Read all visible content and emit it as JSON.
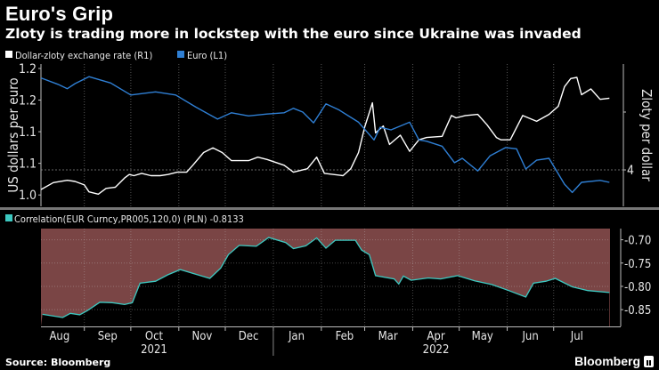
{
  "title": "Euro's Grip",
  "subtitle": "Zloty is trading more in lockstep with the euro since Ukraine was invaded",
  "source": "Source: Bloomberg",
  "brand": "Bloomberg",
  "colors": {
    "euro": "#2f7fd4",
    "zloty": "#ffffff",
    "correlation": "#3cc8c0",
    "correlation_fill": "#7a4545",
    "background": "#000000"
  },
  "chart_data": [
    {
      "type": "line",
      "legend": [
        {
          "label": "Dollar-zloty exchange rate (R1)",
          "color": "#ffffff"
        },
        {
          "label": "Euro  (L1)",
          "color": "#2f7fd4"
        }
      ],
      "legend_placement": "top-left",
      "xlim": [
        "2021-08-04",
        "2022-08-15"
      ],
      "grid": true,
      "left_axis": {
        "label": "US dollars per euro",
        "ylim": [
          0.982,
          1.207
        ],
        "ticks": [
          1.2,
          1.15,
          1.1,
          1.05,
          1.0
        ],
        "tick_labels": [
          "1.2",
          "1.2",
          "1.1",
          "1.1",
          "1.0"
        ]
      },
      "right_axis": {
        "label": "Zloty per dollar",
        "ylim": [
          3.685,
          4.915
        ],
        "ticks": [
          4.0,
          4.5
        ],
        "tick_labels": [
          "4",
          ""
        ]
      },
      "series": [
        {
          "name": "Dollar-zloty exchange rate (R1)",
          "axis": "right",
          "color": "#ffffff",
          "points": [
            [
              "2021-08-04",
              3.83
            ],
            [
              "2021-08-12",
              3.89
            ],
            [
              "2021-08-21",
              3.91
            ],
            [
              "2021-08-26",
              3.9
            ],
            [
              "2021-09-01",
              3.87
            ],
            [
              "2021-09-04",
              3.81
            ],
            [
              "2021-09-10",
              3.79
            ],
            [
              "2021-09-15",
              3.84
            ],
            [
              "2021-09-21",
              3.85
            ],
            [
              "2021-09-27",
              3.93
            ],
            [
              "2021-09-30",
              3.96
            ],
            [
              "2021-10-03",
              3.95
            ],
            [
              "2021-10-08",
              3.97
            ],
            [
              "2021-10-14",
              3.95
            ],
            [
              "2021-10-20",
              3.95
            ],
            [
              "2021-10-25",
              3.96
            ],
            [
              "2021-10-31",
              3.98
            ],
            [
              "2021-11-06",
              3.98
            ],
            [
              "2021-11-10",
              4.04
            ],
            [
              "2021-11-17",
              4.15
            ],
            [
              "2021-11-23",
              4.19
            ],
            [
              "2021-11-29",
              4.15
            ],
            [
              "2021-12-05",
              4.08
            ],
            [
              "2021-12-16",
              4.08
            ],
            [
              "2021-12-22",
              4.11
            ],
            [
              "2021-12-28",
              4.09
            ],
            [
              "2022-01-08",
              4.04
            ],
            [
              "2022-01-14",
              3.98
            ],
            [
              "2022-01-23",
              4.01
            ],
            [
              "2022-01-29",
              4.11
            ],
            [
              "2022-02-03",
              3.97
            ],
            [
              "2022-02-15",
              3.95
            ],
            [
              "2022-02-20",
              4.01
            ],
            [
              "2022-02-25",
              4.15
            ],
            [
              "2022-03-01",
              4.37
            ],
            [
              "2022-03-06",
              4.58
            ],
            [
              "2022-03-08",
              4.32
            ],
            [
              "2022-03-13",
              4.38
            ],
            [
              "2022-03-17",
              4.22
            ],
            [
              "2022-03-24",
              4.3
            ],
            [
              "2022-03-30",
              4.16
            ],
            [
              "2022-04-05",
              4.26
            ],
            [
              "2022-04-10",
              4.28
            ],
            [
              "2022-04-20",
              4.29
            ],
            [
              "2022-04-26",
              4.47
            ],
            [
              "2022-04-29",
              4.45
            ],
            [
              "2022-05-05",
              4.47
            ],
            [
              "2022-05-13",
              4.48
            ],
            [
              "2022-05-19",
              4.39
            ],
            [
              "2022-05-25",
              4.28
            ],
            [
              "2022-05-28",
              4.26
            ],
            [
              "2022-06-03",
              4.26
            ],
            [
              "2022-06-11",
              4.47
            ],
            [
              "2022-06-20",
              4.42
            ],
            [
              "2022-06-28",
              4.48
            ],
            [
              "2022-07-04",
              4.55
            ],
            [
              "2022-07-08",
              4.72
            ],
            [
              "2022-07-12",
              4.79
            ],
            [
              "2022-07-16",
              4.8
            ],
            [
              "2022-07-19",
              4.65
            ],
            [
              "2022-07-25",
              4.7
            ],
            [
              "2022-07-31",
              4.61
            ],
            [
              "2022-08-06",
              4.62
            ]
          ]
        },
        {
          "name": "Euro  (L1)",
          "axis": "left",
          "color": "#2f7fd4",
          "points": [
            [
              "2021-08-04",
              1.185
            ],
            [
              "2021-08-15",
              1.175
            ],
            [
              "2021-08-21",
              1.168
            ],
            [
              "2021-08-26",
              1.176
            ],
            [
              "2021-09-04",
              1.187
            ],
            [
              "2021-09-18",
              1.177
            ],
            [
              "2021-10-01",
              1.158
            ],
            [
              "2021-10-17",
              1.163
            ],
            [
              "2021-10-30",
              1.158
            ],
            [
              "2021-11-12",
              1.139
            ],
            [
              "2021-11-26",
              1.12
            ],
            [
              "2021-12-05",
              1.13
            ],
            [
              "2021-12-16",
              1.125
            ],
            [
              "2021-12-28",
              1.128
            ],
            [
              "2022-01-08",
              1.13
            ],
            [
              "2022-01-14",
              1.137
            ],
            [
              "2022-01-20",
              1.131
            ],
            [
              "2022-01-27",
              1.114
            ],
            [
              "2022-02-04",
              1.144
            ],
            [
              "2022-02-12",
              1.135
            ],
            [
              "2022-02-25",
              1.115
            ],
            [
              "2022-03-07",
              1.087
            ],
            [
              "2022-03-11",
              1.107
            ],
            [
              "2022-03-18",
              1.103
            ],
            [
              "2022-03-30",
              1.115
            ],
            [
              "2022-04-05",
              1.087
            ],
            [
              "2022-04-10",
              1.085
            ],
            [
              "2022-04-20",
              1.077
            ],
            [
              "2022-04-28",
              1.051
            ],
            [
              "2022-05-03",
              1.058
            ],
            [
              "2022-05-13",
              1.038
            ],
            [
              "2022-05-21",
              1.062
            ],
            [
              "2022-05-31",
              1.075
            ],
            [
              "2022-06-07",
              1.073
            ],
            [
              "2022-06-13",
              1.041
            ],
            [
              "2022-06-20",
              1.055
            ],
            [
              "2022-06-28",
              1.058
            ],
            [
              "2022-07-08",
              1.017
            ],
            [
              "2022-07-13",
              1.004
            ],
            [
              "2022-07-19",
              1.02
            ],
            [
              "2022-07-31",
              1.023
            ],
            [
              "2022-08-06",
              1.02
            ]
          ]
        }
      ]
    },
    {
      "type": "area",
      "legend": [
        {
          "label": "Correlation(EUR Curncy,PR005,120,0) (PLN) -0.8133",
          "color": "#3cc8c0"
        }
      ],
      "legend_placement": "top-left",
      "xlim": [
        "2021-08-04",
        "2022-08-15"
      ],
      "ylim": [
        -0.886,
        -0.676
      ],
      "grid": true,
      "right_axis": {
        "ticks": [
          -0.7,
          -0.75,
          -0.8,
          -0.85
        ],
        "tick_labels": [
          "-0.70",
          "-0.75",
          "-0.80",
          "-0.85"
        ]
      },
      "x_tick_labels": [
        "Aug",
        "Sep",
        "Oct",
        "Nov",
        "Dec",
        "Jan",
        "Feb",
        "Mar",
        "Apr",
        "May",
        "Jun",
        "Jul"
      ],
      "year_labels": [
        "2021",
        "2022"
      ],
      "series": [
        {
          "name": "Correlation(EUR Curncy,PR005,120,0) (PLN)",
          "color": "#3cc8c0",
          "points": [
            [
              "2021-08-05",
              -0.86
            ],
            [
              "2021-08-18",
              -0.867
            ],
            [
              "2021-08-23",
              -0.858
            ],
            [
              "2021-08-29",
              -0.861
            ],
            [
              "2021-09-03",
              -0.852
            ],
            [
              "2021-09-11",
              -0.834
            ],
            [
              "2021-09-19",
              -0.835
            ],
            [
              "2021-09-27",
              -0.839
            ],
            [
              "2021-10-02",
              -0.835
            ],
            [
              "2021-10-07",
              -0.793
            ],
            [
              "2021-10-17",
              -0.789
            ],
            [
              "2021-10-25",
              -0.775
            ],
            [
              "2021-11-02",
              -0.764
            ],
            [
              "2021-11-13",
              -0.775
            ],
            [
              "2021-11-21",
              -0.783
            ],
            [
              "2021-11-28",
              -0.761
            ],
            [
              "2021-12-03",
              -0.732
            ],
            [
              "2021-12-10",
              -0.712
            ],
            [
              "2021-12-21",
              -0.714
            ],
            [
              "2021-12-29",
              -0.695
            ],
            [
              "2022-01-09",
              -0.706
            ],
            [
              "2022-01-14",
              -0.719
            ],
            [
              "2022-01-22",
              -0.713
            ],
            [
              "2022-01-29",
              -0.696
            ],
            [
              "2022-02-04",
              -0.718
            ],
            [
              "2022-02-10",
              -0.701
            ],
            [
              "2022-02-23",
              -0.701
            ],
            [
              "2022-02-27",
              -0.722
            ],
            [
              "2022-03-04",
              -0.732
            ],
            [
              "2022-03-08",
              -0.777
            ],
            [
              "2022-03-20",
              -0.784
            ],
            [
              "2022-03-23",
              -0.795
            ],
            [
              "2022-03-26",
              -0.778
            ],
            [
              "2022-03-31",
              -0.787
            ],
            [
              "2022-04-11",
              -0.782
            ],
            [
              "2022-04-19",
              -0.784
            ],
            [
              "2022-04-30",
              -0.777
            ],
            [
              "2022-05-11",
              -0.788
            ],
            [
              "2022-05-22",
              -0.796
            ],
            [
              "2022-06-02",
              -0.809
            ],
            [
              "2022-06-13",
              -0.823
            ],
            [
              "2022-06-18",
              -0.793
            ],
            [
              "2022-06-26",
              -0.789
            ],
            [
              "2022-07-02",
              -0.783
            ],
            [
              "2022-07-13",
              -0.801
            ],
            [
              "2022-07-23",
              -0.809
            ],
            [
              "2022-08-06",
              -0.8133
            ]
          ]
        }
      ]
    }
  ]
}
